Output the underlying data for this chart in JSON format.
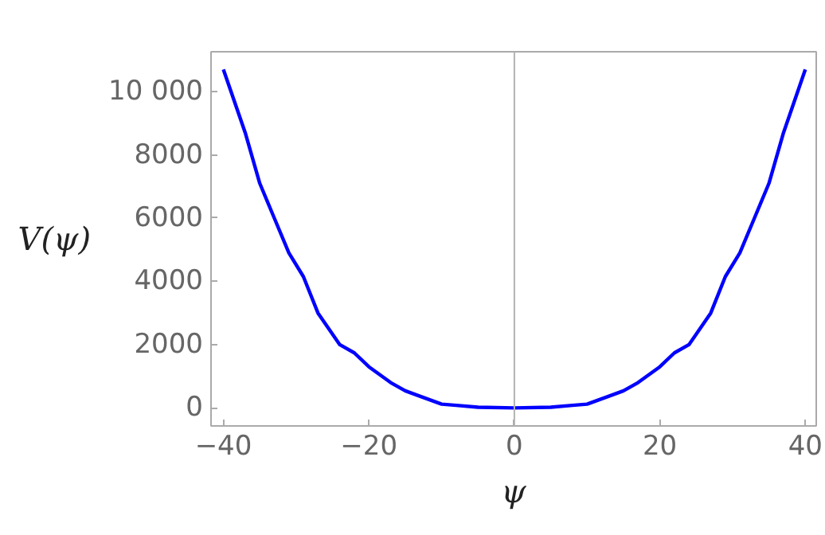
{
  "chart_data": {
    "type": "line",
    "xlabel": "ψ",
    "ylabel": "V(ψ)",
    "x": [
      -40,
      -37,
      -35,
      -33,
      -31,
      -29,
      -27,
      -24,
      -22,
      -20,
      -17,
      -15,
      -13,
      -10,
      -8,
      -5,
      0,
      5,
      8,
      10,
      13,
      15,
      17,
      20,
      22,
      24,
      27,
      29,
      31,
      33,
      35,
      37,
      40
    ],
    "series": [
      {
        "color": "#0000ff",
        "values": [
          10700,
          8700,
          7100,
          6000,
          4900,
          4150,
          3000,
          2000,
          1740,
          1300,
          800,
          540,
          370,
          120,
          80,
          20,
          0,
          20,
          80,
          120,
          370,
          540,
          800,
          1300,
          1740,
          2000,
          3000,
          4150,
          4900,
          6000,
          7100,
          8700,
          10700
        ]
      }
    ],
    "xlim": [
      -41.7,
      41.5
    ],
    "ylim": [
      -570,
      11260
    ],
    "xticks": [
      -40,
      -20,
      0,
      20,
      40
    ],
    "yticks": [
      0,
      2000,
      4000,
      6000,
      8000,
      {
        "value": 10000,
        "label": "10 000"
      }
    ],
    "ref_lines": [
      {
        "axis": "x",
        "value": 0,
        "color": "#b3b3b3"
      }
    ],
    "grid": false,
    "marker": "none",
    "line_style": "solid"
  }
}
